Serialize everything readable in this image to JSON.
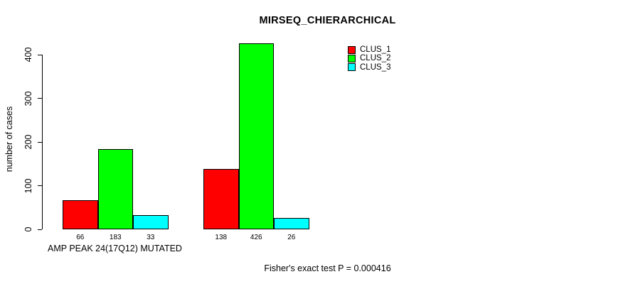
{
  "chart_data": {
    "type": "bar",
    "title": "MIRSEQ_CHIERARCHICAL",
    "ylabel": "number of cases",
    "xlabel": "AMP PEAK 24(17Q12) MUTATED",
    "ylim": [
      0,
      400
    ],
    "yticks": [
      0,
      100,
      200,
      300,
      400
    ],
    "categories": [
      "AMP PEAK 24(17Q12) MUTATED",
      ""
    ],
    "series": [
      {
        "name": "CLUS_1",
        "color": "#ff0000",
        "values": [
          66,
          138
        ]
      },
      {
        "name": "CLUS_2",
        "color": "#00ff00",
        "values": [
          183,
          426
        ]
      },
      {
        "name": "CLUS_3",
        "color": "#00ffff",
        "values": [
          33,
          26
        ]
      }
    ],
    "bar_value_labels": [
      [
        66,
        183,
        33
      ],
      [
        138,
        426,
        26
      ]
    ],
    "legend_position": "top-right",
    "grid": false,
    "background": "#ffffff",
    "axis_color": "#000000"
  },
  "footer": {
    "note": "Fisher's exact test P = 0.000416"
  }
}
